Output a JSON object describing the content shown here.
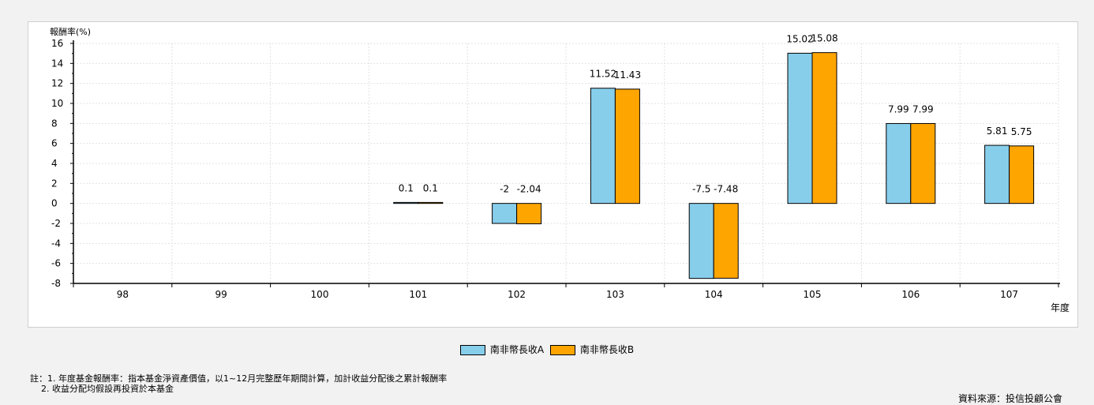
{
  "chart_data": {
    "type": "bar",
    "ylabel": "報酬率(%)",
    "xlabel": "年度",
    "categories": [
      "98",
      "99",
      "100",
      "101",
      "102",
      "103",
      "104",
      "105",
      "106",
      "107"
    ],
    "ylim": [
      -8,
      16
    ],
    "yticks": [
      "16",
      "14",
      "12",
      "10",
      "8",
      "6",
      "4",
      "2",
      "0",
      "-2",
      "-4",
      "-6",
      "-8"
    ],
    "grid": true,
    "legend_position": "bottom",
    "series": [
      {
        "name": "南非幣長收A",
        "color": "#87ceeb",
        "values": [
          null,
          null,
          null,
          0.1,
          -2,
          11.52,
          -7.5,
          15.02,
          7.99,
          5.81
        ],
        "labels": [
          "",
          "",
          "",
          "0.1",
          "-2",
          "11.52",
          "-7.5",
          "15.02",
          "7.99",
          "5.81"
        ]
      },
      {
        "name": "南非幣長收B",
        "color": "#ffa500",
        "values": [
          null,
          null,
          null,
          0.1,
          -2.04,
          11.43,
          -7.48,
          15.08,
          7.99,
          5.75
        ],
        "labels": [
          "",
          "",
          "",
          "0.1",
          "-2.04",
          "11.43",
          "-7.48",
          "15.08",
          "7.99",
          "5.75"
        ]
      }
    ]
  },
  "notes": {
    "line1": "註：1. 年度基金報酬率：指本基金淨資產價值，以1~12月完整歷年期間計算，加計收益分配後之累計報酬率",
    "line2": "2. 收益分配均假設再投資於本基金"
  },
  "source": "資料來源：投信投顧公會"
}
